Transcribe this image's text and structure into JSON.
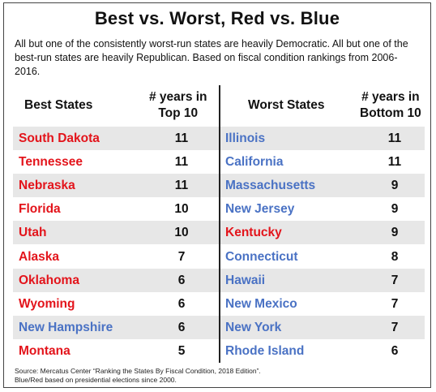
{
  "title": "Best vs. Worst, Red vs. Blue",
  "subtitle": "All but one of the consistently worst-run states are heavily Democratic. All but one of the best-run states are heavily Republican. Based on fiscal condition rankings from 2006-2016.",
  "colors": {
    "red": "#e3141b",
    "blue": "#4a72c4",
    "row_shade": "#e7e7e7"
  },
  "headers": {
    "best_states": "Best States",
    "years_top_line1": "# years in",
    "years_top_line2": "Top 10",
    "worst_states": "Worst States",
    "years_bottom_line1": "# years in",
    "years_bottom_line2": "Bottom 10"
  },
  "rows": [
    {
      "best": "South Dakota",
      "best_party": "red",
      "best_years": "11",
      "worst": "Illinois",
      "worst_party": "blue",
      "worst_years": "11"
    },
    {
      "best": "Tennessee",
      "best_party": "red",
      "best_years": "11",
      "worst": "California",
      "worst_party": "blue",
      "worst_years": "11"
    },
    {
      "best": "Nebraska",
      "best_party": "red",
      "best_years": "11",
      "worst": "Massachusetts",
      "worst_party": "blue",
      "worst_years": "9"
    },
    {
      "best": "Florida",
      "best_party": "red",
      "best_years": "10",
      "worst": "New Jersey",
      "worst_party": "blue",
      "worst_years": "9"
    },
    {
      "best": "Utah",
      "best_party": "red",
      "best_years": "10",
      "worst": "Kentucky",
      "worst_party": "red",
      "worst_years": "9"
    },
    {
      "best": "Alaska",
      "best_party": "red",
      "best_years": "7",
      "worst": "Connecticut",
      "worst_party": "blue",
      "worst_years": "8"
    },
    {
      "best": "Oklahoma",
      "best_party": "red",
      "best_years": "6",
      "worst": "Hawaii",
      "worst_party": "blue",
      "worst_years": "7"
    },
    {
      "best": "Wyoming",
      "best_party": "red",
      "best_years": "6",
      "worst": "New Mexico",
      "worst_party": "blue",
      "worst_years": "7"
    },
    {
      "best": "New Hampshire",
      "best_party": "blue",
      "best_years": "6",
      "worst": "New York",
      "worst_party": "blue",
      "worst_years": "7"
    },
    {
      "best": "Montana",
      "best_party": "red",
      "best_years": "5",
      "worst": "Rhode Island",
      "worst_party": "blue",
      "worst_years": "6"
    }
  ],
  "source_line1": "Source: Mercatus Center “Ranking the States By Fiscal Condition,  2018 Edition”.",
  "source_line2": "Blue/Red  based on presidential elections  since 2000."
}
